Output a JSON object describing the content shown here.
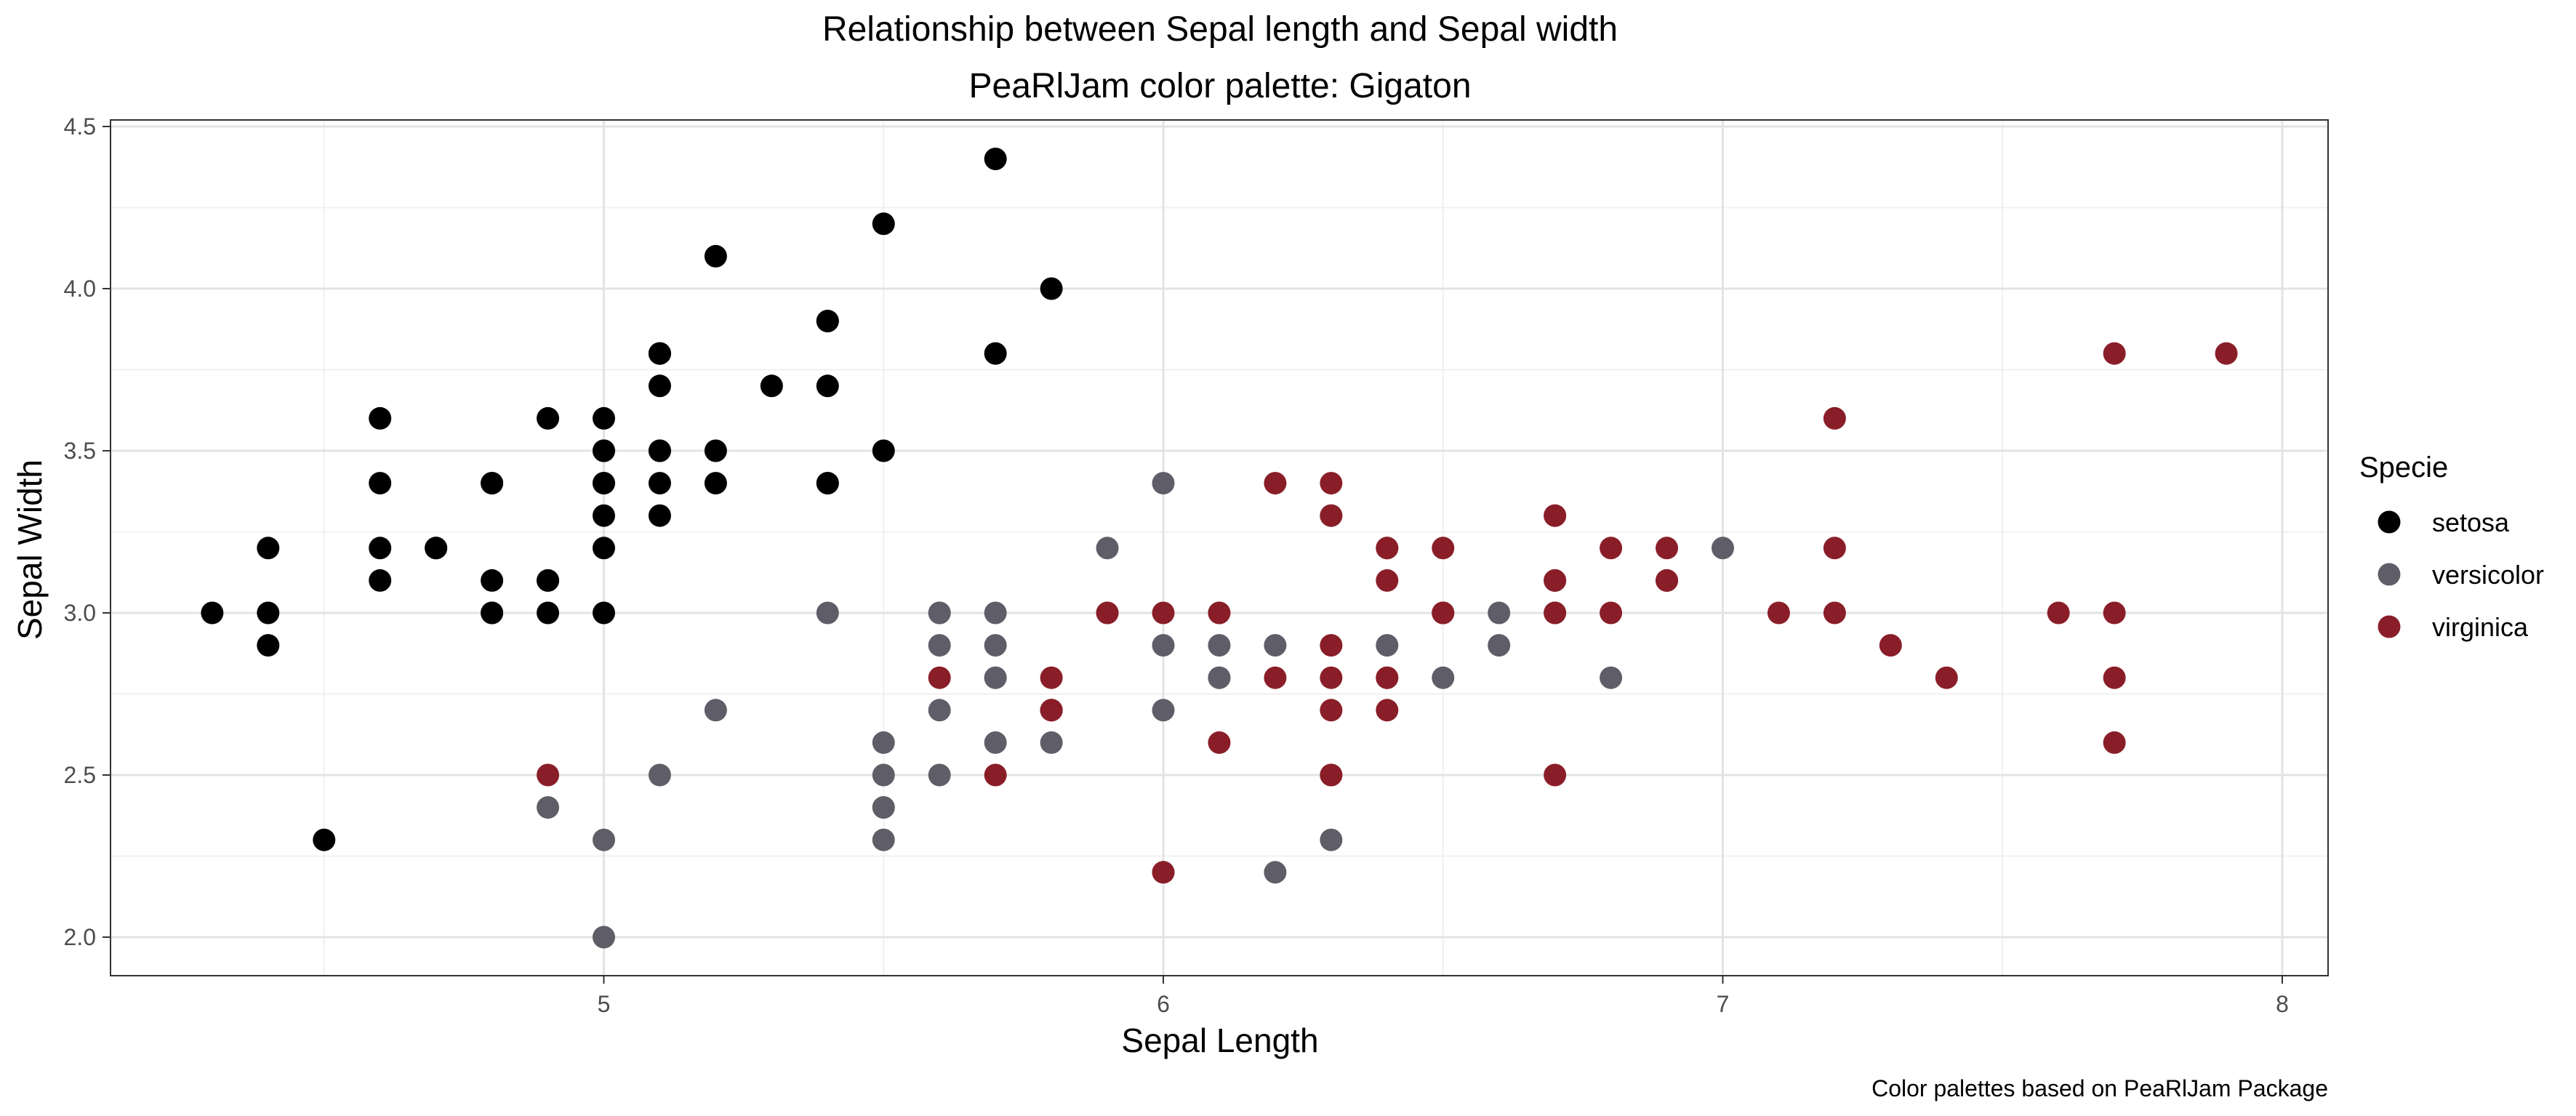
{
  "chart_data": {
    "type": "scatter",
    "title": "Relationship between Sepal length and Sepal width",
    "subtitle": "PeaRlJam color palette: Gigaton",
    "xlabel": "Sepal Length",
    "ylabel": "Sepal Width",
    "caption": "Color palettes based on PeaRlJam Package",
    "xlim": [
      4.2,
      8.1
    ],
    "ylim": [
      1.9,
      4.5
    ],
    "x_ticks": [
      5,
      6,
      7,
      8
    ],
    "x_tick_labels": [
      "5",
      "6",
      "7",
      "8"
    ],
    "y_ticks": [
      2.0,
      2.5,
      3.0,
      3.5,
      4.0,
      4.5
    ],
    "y_tick_labels": [
      "2.0",
      "2.5",
      "3.0",
      "3.5",
      "4.0",
      "4.5"
    ],
    "grid": true,
    "legend": {
      "title": "Specie",
      "position": "right"
    },
    "series": [
      {
        "name": "setosa",
        "color": "#000000",
        "points": [
          [
            5.1,
            3.5
          ],
          [
            4.9,
            3.0
          ],
          [
            4.7,
            3.2
          ],
          [
            4.6,
            3.1
          ],
          [
            5.0,
            3.6
          ],
          [
            5.4,
            3.9
          ],
          [
            4.6,
            3.4
          ],
          [
            5.0,
            3.4
          ],
          [
            4.4,
            2.9
          ],
          [
            4.9,
            3.1
          ],
          [
            5.4,
            3.7
          ],
          [
            4.8,
            3.4
          ],
          [
            4.8,
            3.0
          ],
          [
            4.3,
            3.0
          ],
          [
            5.8,
            4.0
          ],
          [
            5.7,
            4.4
          ],
          [
            5.4,
            3.9
          ],
          [
            5.1,
            3.5
          ],
          [
            5.7,
            3.8
          ],
          [
            5.1,
            3.8
          ],
          [
            5.4,
            3.4
          ],
          [
            5.1,
            3.7
          ],
          [
            4.6,
            3.6
          ],
          [
            5.1,
            3.3
          ],
          [
            4.8,
            3.4
          ],
          [
            5.0,
            3.0
          ],
          [
            5.0,
            3.4
          ],
          [
            5.2,
            3.5
          ],
          [
            5.2,
            3.4
          ],
          [
            4.7,
            3.2
          ],
          [
            4.8,
            3.1
          ],
          [
            5.4,
            3.4
          ],
          [
            5.2,
            4.1
          ],
          [
            5.5,
            4.2
          ],
          [
            4.9,
            3.1
          ],
          [
            5.0,
            3.2
          ],
          [
            5.5,
            3.5
          ],
          [
            4.9,
            3.6
          ],
          [
            4.4,
            3.0
          ],
          [
            5.1,
            3.4
          ],
          [
            5.0,
            3.5
          ],
          [
            4.5,
            2.3
          ],
          [
            4.4,
            3.2
          ],
          [
            5.0,
            3.5
          ],
          [
            5.1,
            3.8
          ],
          [
            4.8,
            3.0
          ],
          [
            5.1,
            3.8
          ],
          [
            4.6,
            3.2
          ],
          [
            5.3,
            3.7
          ],
          [
            5.0,
            3.3
          ]
        ]
      },
      {
        "name": "versicolor",
        "color": "#5f5e68",
        "points": [
          [
            7.0,
            3.2
          ],
          [
            6.4,
            3.2
          ],
          [
            6.9,
            3.1
          ],
          [
            5.5,
            2.3
          ],
          [
            6.5,
            2.8
          ],
          [
            5.7,
            2.8
          ],
          [
            6.3,
            3.3
          ],
          [
            4.9,
            2.4
          ],
          [
            6.6,
            2.9
          ],
          [
            5.2,
            2.7
          ],
          [
            5.0,
            2.0
          ],
          [
            5.9,
            3.0
          ],
          [
            6.0,
            2.2
          ],
          [
            6.1,
            2.9
          ],
          [
            5.6,
            2.9
          ],
          [
            6.7,
            3.1
          ],
          [
            5.6,
            3.0
          ],
          [
            5.8,
            2.7
          ],
          [
            6.2,
            2.2
          ],
          [
            5.6,
            2.5
          ],
          [
            5.9,
            3.2
          ],
          [
            6.1,
            2.8
          ],
          [
            6.3,
            2.5
          ],
          [
            6.1,
            2.8
          ],
          [
            6.4,
            2.9
          ],
          [
            6.6,
            3.0
          ],
          [
            6.8,
            2.8
          ],
          [
            6.7,
            3.0
          ],
          [
            6.0,
            2.9
          ],
          [
            5.7,
            2.6
          ],
          [
            5.5,
            2.4
          ],
          [
            5.5,
            2.4
          ],
          [
            5.8,
            2.7
          ],
          [
            6.0,
            2.7
          ],
          [
            5.4,
            3.0
          ],
          [
            6.0,
            3.4
          ],
          [
            6.7,
            3.1
          ],
          [
            6.3,
            2.3
          ],
          [
            5.6,
            3.0
          ],
          [
            5.5,
            2.5
          ],
          [
            5.5,
            2.6
          ],
          [
            6.1,
            3.0
          ],
          [
            5.8,
            2.6
          ],
          [
            5.0,
            2.3
          ],
          [
            5.6,
            2.7
          ],
          [
            5.7,
            3.0
          ],
          [
            5.7,
            2.9
          ],
          [
            6.2,
            2.9
          ],
          [
            5.1,
            2.5
          ],
          [
            5.7,
            2.8
          ]
        ]
      },
      {
        "name": "virginica",
        "color": "#8a1e28",
        "points": [
          [
            6.3,
            3.3
          ],
          [
            5.8,
            2.7
          ],
          [
            7.1,
            3.0
          ],
          [
            6.3,
            2.9
          ],
          [
            6.5,
            3.0
          ],
          [
            7.6,
            3.0
          ],
          [
            4.9,
            2.5
          ],
          [
            7.3,
            2.9
          ],
          [
            6.7,
            2.5
          ],
          [
            7.2,
            3.6
          ],
          [
            6.5,
            3.2
          ],
          [
            6.4,
            2.7
          ],
          [
            6.8,
            3.0
          ],
          [
            5.7,
            2.5
          ],
          [
            5.8,
            2.8
          ],
          [
            6.4,
            3.2
          ],
          [
            6.5,
            3.0
          ],
          [
            7.7,
            3.8
          ],
          [
            7.7,
            2.6
          ],
          [
            6.0,
            2.2
          ],
          [
            6.9,
            3.2
          ],
          [
            5.6,
            2.8
          ],
          [
            7.7,
            2.8
          ],
          [
            6.3,
            2.7
          ],
          [
            6.7,
            3.3
          ],
          [
            7.2,
            3.2
          ],
          [
            6.2,
            2.8
          ],
          [
            6.1,
            3.0
          ],
          [
            6.4,
            2.8
          ],
          [
            7.2,
            3.0
          ],
          [
            7.4,
            2.8
          ],
          [
            7.9,
            3.8
          ],
          [
            6.4,
            2.8
          ],
          [
            6.3,
            2.8
          ],
          [
            6.1,
            2.6
          ],
          [
            7.7,
            3.0
          ],
          [
            6.3,
            3.4
          ],
          [
            6.4,
            3.1
          ],
          [
            6.0,
            3.0
          ],
          [
            6.9,
            3.1
          ],
          [
            6.7,
            3.1
          ],
          [
            6.9,
            3.1
          ],
          [
            5.8,
            2.7
          ],
          [
            6.8,
            3.2
          ],
          [
            6.7,
            3.3
          ],
          [
            6.7,
            3.0
          ],
          [
            6.3,
            2.5
          ],
          [
            6.5,
            3.0
          ],
          [
            6.2,
            3.4
          ],
          [
            5.9,
            3.0
          ]
        ]
      }
    ]
  }
}
